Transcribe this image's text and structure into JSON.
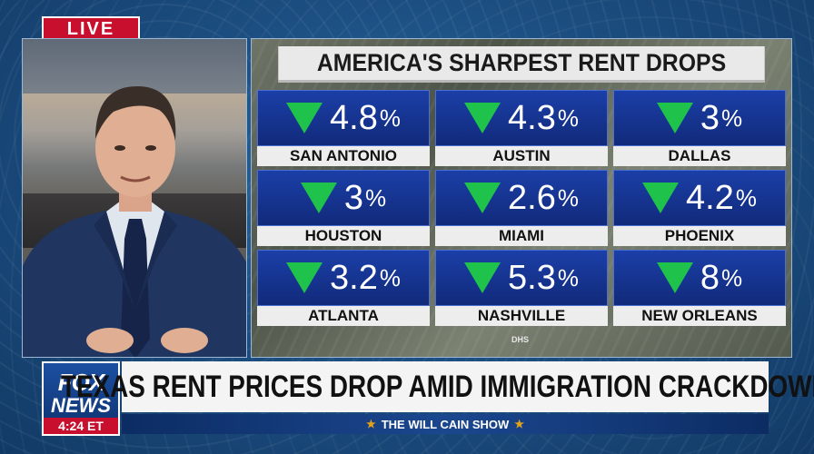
{
  "live_badge": "LIVE",
  "graphic": {
    "title": "AMERICA'S SHARPEST RENT DROPS",
    "credit": "DHS",
    "down_color": "#1fc24a",
    "cities": [
      {
        "city": "SAN ANTONIO",
        "value": "4.8",
        "unit": "%"
      },
      {
        "city": "AUSTIN",
        "value": "4.3",
        "unit": "%"
      },
      {
        "city": "DALLAS",
        "value": "3",
        "unit": "%"
      },
      {
        "city": "HOUSTON",
        "value": "3",
        "unit": "%"
      },
      {
        "city": "MIAMI",
        "value": "2.6",
        "unit": "%"
      },
      {
        "city": "PHOENIX",
        "value": "4.2",
        "unit": "%"
      },
      {
        "city": "ATLANTA",
        "value": "3.2",
        "unit": "%"
      },
      {
        "city": "NASHVILLE",
        "value": "5.3",
        "unit": "%"
      },
      {
        "city": "NEW ORLEANS",
        "value": "8",
        "unit": "%"
      }
    ]
  },
  "lower_third": {
    "logo_line1": "FOX",
    "logo_line2": "NEWS",
    "time": "4:24 ET",
    "headline": "TEXAS RENT PRICES DROP AMID IMMIGRATION CRACKDOWN",
    "show_name": "THE WILL CAIN SHOW"
  },
  "colors": {
    "live_red": "#c8102e",
    "tile_blue": "#112a7a"
  },
  "icons": [
    "down-arrow-icon",
    "star-icon"
  ]
}
